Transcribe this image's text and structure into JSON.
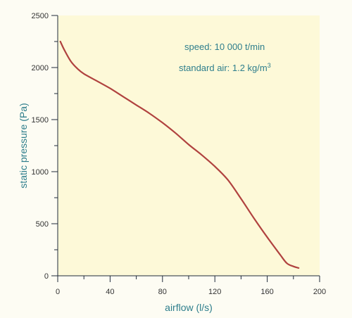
{
  "colors": {
    "plot_background": "#fdf9d8",
    "page_background": "#fdfcf3",
    "axis": "#1f2a3a",
    "curve": "#b0423f",
    "label_teal": "#2e7e8c",
    "tick_text": "#333333"
  },
  "chart_data": {
    "type": "line",
    "title": "",
    "xlabel": "airflow (l/s)",
    "ylabel": "static pressure (Pa)",
    "xlim": [
      0,
      200
    ],
    "ylim": [
      0,
      2500
    ],
    "xticks": [
      0,
      40,
      80,
      120,
      160,
      200
    ],
    "yticks": [
      0,
      500,
      1000,
      1500,
      2000,
      2500
    ],
    "grid": false,
    "annotations": [
      {
        "text": "speed: 10 000 t/min"
      },
      {
        "text": "standard air: 1.2 kg/m",
        "superscript": "3"
      }
    ],
    "series": [
      {
        "x": [
          2,
          5,
          10,
          15,
          20,
          30,
          40,
          50,
          60,
          70,
          80,
          90,
          100,
          110,
          120,
          130,
          140,
          150,
          160,
          170,
          175,
          180,
          184
        ],
        "y": [
          2250,
          2170,
          2060,
          1990,
          1940,
          1870,
          1800,
          1720,
          1640,
          1560,
          1470,
          1370,
          1260,
          1160,
          1050,
          920,
          740,
          550,
          370,
          200,
          120,
          90,
          75
        ]
      }
    ]
  }
}
